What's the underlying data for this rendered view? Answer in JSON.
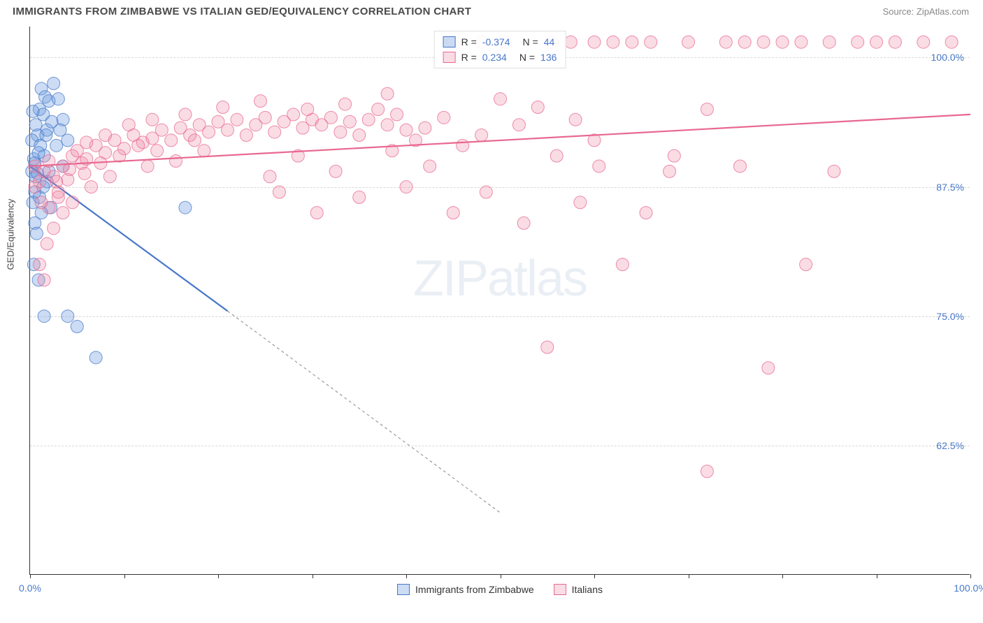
{
  "header": {
    "title": "IMMIGRANTS FROM ZIMBABWE VS ITALIAN GED/EQUIVALENCY CORRELATION CHART",
    "source": "Source: ZipAtlas.com"
  },
  "chart": {
    "type": "scatter",
    "y_axis_label": "GED/Equivalency",
    "xlim": [
      0,
      100
    ],
    "ylim": [
      50,
      103
    ],
    "x_ticks": [
      0,
      10,
      20,
      30,
      40,
      50,
      60,
      70,
      80,
      90,
      100
    ],
    "x_tick_labels": {
      "0": "0.0%",
      "100": "100.0%"
    },
    "y_ticks": [
      62.5,
      75.0,
      87.5,
      100.0
    ],
    "y_tick_labels": [
      "62.5%",
      "75.0%",
      "87.5%",
      "100.0%"
    ],
    "grid_color": "#d8d8d8",
    "axis_color": "#333333",
    "background_color": "#ffffff",
    "tick_label_color": "#4878c8",
    "marker_radius": 9,
    "marker_opacity": 0.45,
    "marker_stroke_opacity": 0.75,
    "watermark": "ZIPatlas",
    "series": [
      {
        "name": "Immigrants from Zimbabwe",
        "color": "#6b9be0",
        "fill": "rgba(107,155,224,0.35)",
        "stroke": "#4878c8",
        "R": "-0.374",
        "N": "44",
        "regression": {
          "x1": 0,
          "y1": 89.5,
          "x2": 21,
          "y2": 75.5,
          "extend_x2": 50,
          "extend_y2": 56
        },
        "points": [
          [
            0.2,
            89.0
          ],
          [
            0.4,
            90.2
          ],
          [
            0.6,
            88.5
          ],
          [
            0.5,
            87.0
          ],
          [
            0.8,
            92.5
          ],
          [
            1.0,
            95.0
          ],
          [
            1.2,
            97.0
          ],
          [
            1.4,
            94.5
          ],
          [
            1.6,
            96.2
          ],
          [
            1.8,
            93.0
          ],
          [
            2.0,
            95.8
          ],
          [
            2.5,
            97.5
          ],
          [
            3.0,
            96.0
          ],
          [
            3.5,
            94.0
          ],
          [
            1.5,
            90.5
          ],
          [
            0.3,
            86.0
          ],
          [
            1.0,
            86.5
          ],
          [
            1.8,
            88.0
          ],
          [
            2.2,
            85.5
          ],
          [
            4.0,
            92.0
          ],
          [
            4.0,
            75.0
          ],
          [
            5.0,
            74.0
          ],
          [
            7.0,
            71.0
          ],
          [
            0.5,
            84.0
          ],
          [
            0.7,
            83.0
          ],
          [
            1.2,
            85.0
          ],
          [
            0.4,
            80.0
          ],
          [
            0.9,
            78.5
          ],
          [
            1.5,
            75.0
          ],
          [
            3.5,
            89.5
          ],
          [
            0.2,
            92.0
          ],
          [
            0.6,
            93.5
          ],
          [
            0.3,
            94.8
          ],
          [
            1.1,
            91.5
          ],
          [
            2.8,
            91.5
          ],
          [
            0.8,
            88.8
          ],
          [
            1.4,
            87.5
          ],
          [
            2.0,
            89.0
          ],
          [
            0.5,
            89.8
          ],
          [
            0.9,
            90.8
          ],
          [
            16.5,
            85.5
          ],
          [
            1.7,
            92.5
          ],
          [
            2.3,
            93.8
          ],
          [
            3.2,
            93.0
          ]
        ]
      },
      {
        "name": "Italians",
        "color": "#f08ca8",
        "fill": "rgba(240,140,168,0.3)",
        "stroke": "#e86890",
        "R": "0.234",
        "N": "136",
        "regression": {
          "x1": 0,
          "y1": 89.5,
          "x2": 100,
          "y2": 94.5
        },
        "points": [
          [
            0.5,
            89.5
          ],
          [
            1.0,
            88.0
          ],
          [
            1.5,
            89.0
          ],
          [
            2.0,
            90.0
          ],
          [
            2.5,
            88.5
          ],
          [
            3.0,
            87.0
          ],
          [
            3.5,
            89.5
          ],
          [
            4.0,
            88.2
          ],
          [
            4.5,
            90.5
          ],
          [
            5.0,
            91.0
          ],
          [
            5.5,
            89.8
          ],
          [
            6.0,
            90.2
          ],
          [
            7.0,
            91.5
          ],
          [
            8.0,
            90.8
          ],
          [
            9.0,
            92.0
          ],
          [
            10.0,
            91.2
          ],
          [
            11.0,
            92.5
          ],
          [
            12.0,
            91.8
          ],
          [
            13.0,
            92.2
          ],
          [
            14.0,
            93.0
          ],
          [
            15.0,
            92.0
          ],
          [
            16.0,
            93.2
          ],
          [
            17.0,
            92.5
          ],
          [
            18.0,
            93.5
          ],
          [
            19.0,
            92.8
          ],
          [
            20.0,
            93.8
          ],
          [
            21.0,
            93.0
          ],
          [
            22.0,
            94.0
          ],
          [
            23.0,
            92.5
          ],
          [
            24.0,
            93.5
          ],
          [
            25.0,
            94.2
          ],
          [
            26.0,
            92.8
          ],
          [
            27.0,
            93.8
          ],
          [
            28.0,
            94.5
          ],
          [
            29.0,
            93.2
          ],
          [
            30.0,
            94.0
          ],
          [
            31.0,
            93.5
          ],
          [
            32.0,
            94.2
          ],
          [
            33.0,
            92.8
          ],
          [
            34.0,
            93.8
          ],
          [
            35.0,
            92.5
          ],
          [
            36.0,
            94.0
          ],
          [
            37.0,
            95.0
          ],
          [
            38.0,
            93.5
          ],
          [
            39.0,
            94.5
          ],
          [
            40.0,
            93.0
          ],
          [
            41.0,
            92.0
          ],
          [
            42.0,
            93.2
          ],
          [
            44.0,
            94.2
          ],
          [
            46.0,
            91.5
          ],
          [
            48.0,
            92.5
          ],
          [
            50.0,
            96.0
          ],
          [
            52.0,
            93.5
          ],
          [
            54.0,
            95.2
          ],
          [
            56.0,
            90.5
          ],
          [
            58.0,
            94.0
          ],
          [
            60.0,
            92.0
          ],
          [
            62.0,
            101.5
          ],
          [
            64.0,
            101.5
          ],
          [
            66.0,
            101.5
          ],
          [
            68.0,
            89.0
          ],
          [
            70.0,
            101.5
          ],
          [
            72.0,
            95.0
          ],
          [
            74.0,
            101.5
          ],
          [
            76.0,
            101.5
          ],
          [
            78.0,
            101.5
          ],
          [
            80.0,
            101.5
          ],
          [
            82.0,
            101.5
          ],
          [
            85.0,
            101.5
          ],
          [
            88.0,
            101.5
          ],
          [
            90.0,
            101.5
          ],
          [
            92.0,
            101.5
          ],
          [
            95.0,
            101.5
          ],
          [
            98.0,
            101.5
          ],
          [
            3.0,
            86.5
          ],
          [
            3.5,
            85.0
          ],
          [
            1.0,
            80.0
          ],
          [
            1.5,
            78.5
          ],
          [
            2.0,
            85.5
          ],
          [
            4.5,
            86.0
          ],
          [
            6.5,
            87.5
          ],
          [
            8.5,
            88.5
          ],
          [
            12.5,
            89.5
          ],
          [
            15.5,
            90.0
          ],
          [
            18.5,
            91.0
          ],
          [
            25.5,
            88.5
          ],
          [
            28.5,
            90.5
          ],
          [
            32.5,
            89.0
          ],
          [
            38.5,
            91.0
          ],
          [
            42.5,
            89.5
          ],
          [
            45.0,
            85.0
          ],
          [
            48.5,
            87.0
          ],
          [
            52.5,
            84.0
          ],
          [
            55.0,
            72.0
          ],
          [
            58.5,
            86.0
          ],
          [
            60.5,
            89.5
          ],
          [
            63.0,
            80.0
          ],
          [
            65.5,
            85.0
          ],
          [
            68.5,
            90.5
          ],
          [
            72.0,
            60.0
          ],
          [
            75.5,
            89.5
          ],
          [
            78.5,
            70.0
          ],
          [
            82.5,
            80.0
          ],
          [
            85.5,
            89.0
          ],
          [
            0.5,
            87.5
          ],
          [
            1.2,
            86.0
          ],
          [
            2.8,
            88.0
          ],
          [
            4.2,
            89.2
          ],
          [
            5.8,
            88.8
          ],
          [
            7.5,
            89.8
          ],
          [
            9.5,
            90.5
          ],
          [
            11.5,
            91.5
          ],
          [
            13.5,
            91.0
          ],
          [
            17.5,
            92.0
          ],
          [
            48.0,
            101.5
          ],
          [
            45.0,
            101.5
          ],
          [
            50.5,
            101.5
          ],
          [
            55.5,
            101.5
          ],
          [
            57.5,
            101.5
          ],
          [
            60.0,
            101.5
          ],
          [
            1.8,
            82.0
          ],
          [
            2.5,
            83.5
          ],
          [
            35.0,
            86.5
          ],
          [
            40.0,
            87.5
          ],
          [
            30.5,
            85.0
          ],
          [
            26.5,
            87.0
          ],
          [
            38.0,
            96.5
          ],
          [
            33.5,
            95.5
          ],
          [
            29.5,
            95.0
          ],
          [
            24.5,
            95.8
          ],
          [
            20.5,
            95.2
          ],
          [
            16.5,
            94.5
          ],
          [
            13.0,
            94.0
          ],
          [
            10.5,
            93.5
          ],
          [
            8.0,
            92.5
          ],
          [
            6.0,
            91.8
          ]
        ]
      }
    ],
    "legend_bottom": [
      {
        "swatch_fill": "rgba(107,155,224,0.35)",
        "swatch_stroke": "#4878c8",
        "label": "Immigrants from Zimbabwe"
      },
      {
        "swatch_fill": "rgba(240,140,168,0.3)",
        "swatch_stroke": "#e86890",
        "label": "Italians"
      }
    ]
  }
}
